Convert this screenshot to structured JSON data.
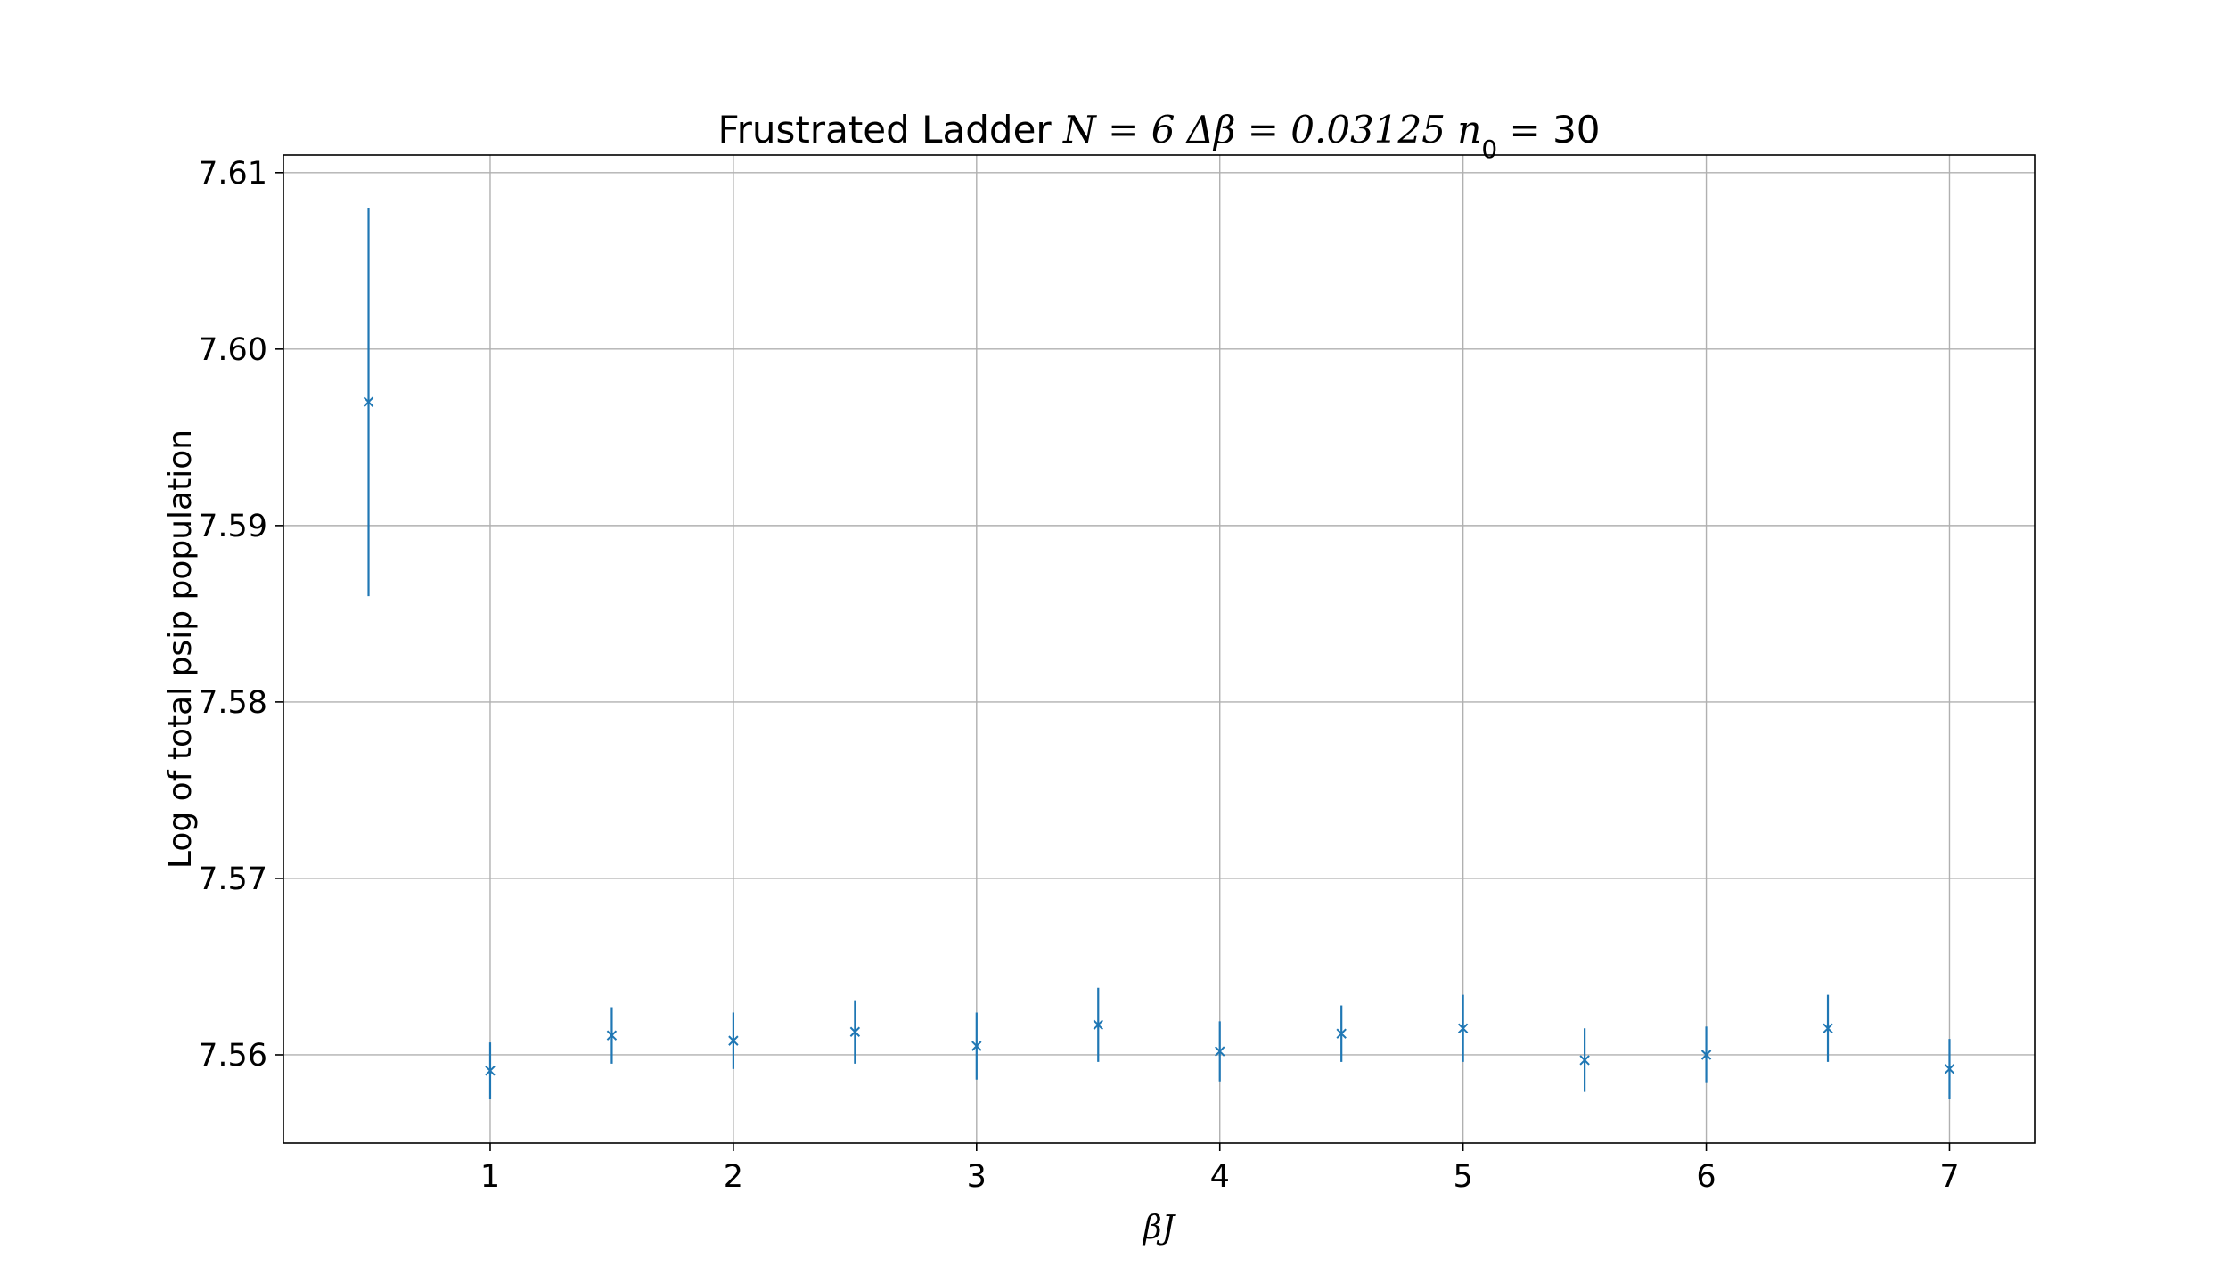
{
  "chart_data": {
    "type": "scatter",
    "title_prefix": "Frustrated Ladder ",
    "title_math": "N = 6  Δβ = 0.03125  n",
    "title_subscript": "0",
    "title_suffix": " = 30",
    "xlabel": "βJ",
    "ylabel": "Log of total psip population",
    "xlim": [
      0.15,
      7.35
    ],
    "ylim": [
      7.555,
      7.611
    ],
    "xticks": [
      1,
      2,
      3,
      4,
      5,
      6,
      7
    ],
    "yticks": [
      7.56,
      7.57,
      7.58,
      7.59,
      7.6,
      7.61
    ],
    "ytick_labels": [
      "7.56",
      "7.57",
      "7.58",
      "7.59",
      "7.60",
      "7.61"
    ],
    "grid": true,
    "marker": "x",
    "color": "#1f77b4",
    "series": [
      {
        "x": [
          0.5,
          1.0,
          1.5,
          2.0,
          2.5,
          3.0,
          3.5,
          4.0,
          4.5,
          5.0,
          5.5,
          6.0,
          6.5,
          7.0
        ],
        "y": [
          7.597,
          7.5591,
          7.5611,
          7.5608,
          7.5613,
          7.5605,
          7.5617,
          7.5602,
          7.5612,
          7.5615,
          7.5597,
          7.56,
          7.5615,
          7.5592
        ],
        "yerr": [
          0.011,
          0.0016,
          0.0016,
          0.0016,
          0.0018,
          0.0019,
          0.0021,
          0.0017,
          0.0016,
          0.0019,
          0.0018,
          0.0016,
          0.0019,
          0.0017
        ]
      }
    ]
  }
}
